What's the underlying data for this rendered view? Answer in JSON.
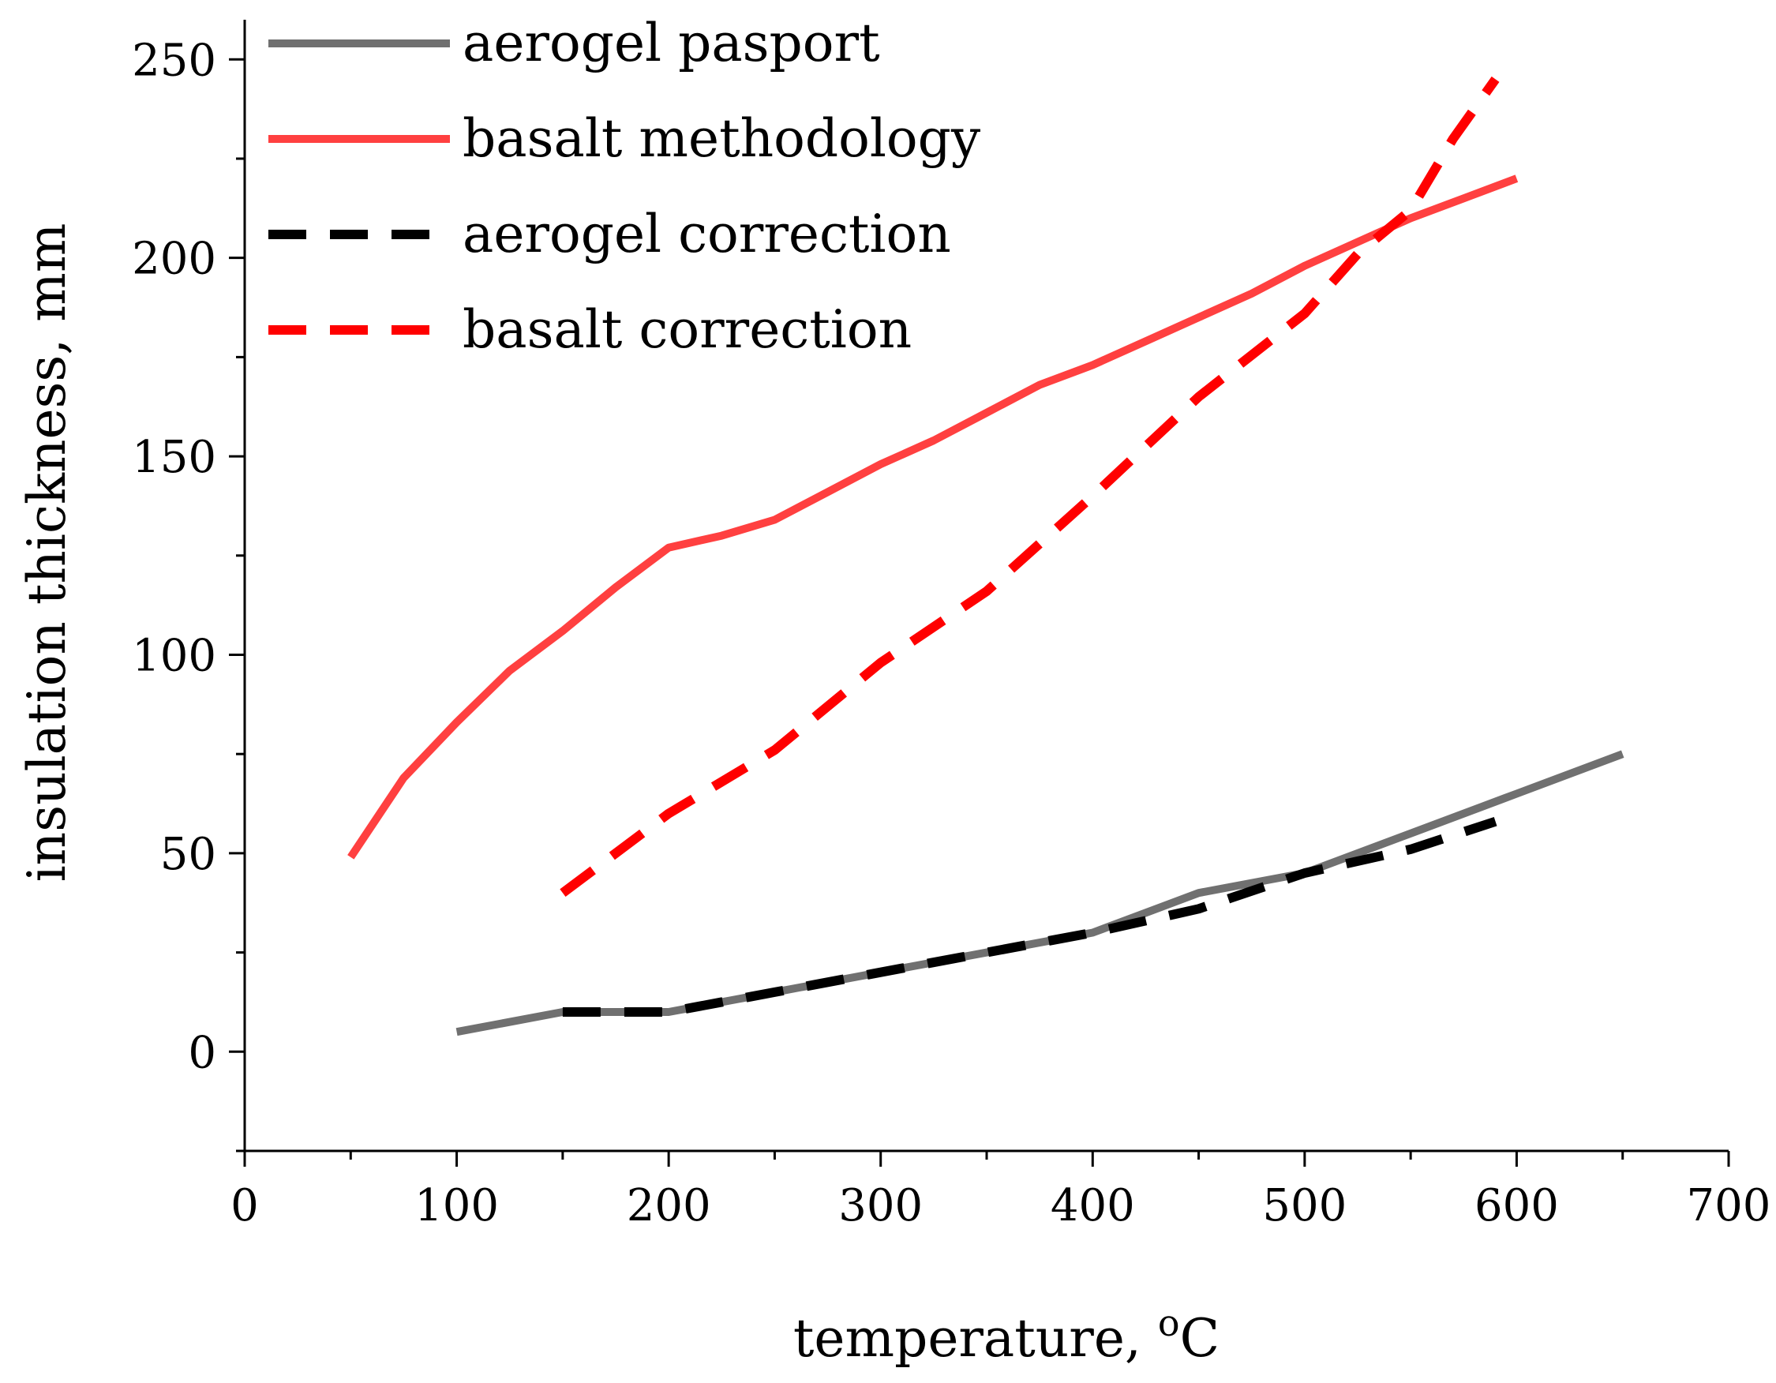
{
  "chart_data": {
    "type": "line",
    "title": "",
    "xlabel": "temperature, ",
    "xlabel_unit_sup": "o",
    "xlabel_unit": "C",
    "ylabel": "insulation thickness, mm",
    "xlim": [
      0,
      700
    ],
    "ylim": [
      -25,
      260
    ],
    "x_ticks": [
      0,
      100,
      200,
      300,
      400,
      500,
      600,
      700
    ],
    "x_tick_labels": [
      "0",
      "100",
      "200",
      "300",
      "400",
      "500",
      "600",
      "700"
    ],
    "y_ticks": [
      0,
      50,
      100,
      150,
      200,
      250
    ],
    "y_tick_labels": [
      "0",
      "50",
      "100",
      "150",
      "200",
      "250"
    ],
    "grid": false,
    "legend_position": "top-left",
    "series": [
      {
        "name": "aerogel pasport",
        "color": "#707070",
        "dash": "solid",
        "x": [
          100,
          150,
          200,
          250,
          300,
          350,
          400,
          450,
          500,
          550,
          600,
          650
        ],
        "y": [
          5,
          10,
          10,
          15,
          20,
          25,
          30,
          40,
          45,
          55,
          65,
          75
        ]
      },
      {
        "name": "basalt methodology",
        "color": "#ff4040",
        "dash": "solid",
        "x": [
          50,
          75,
          100,
          125,
          150,
          175,
          200,
          225,
          250,
          275,
          300,
          325,
          350,
          375,
          400,
          425,
          450,
          475,
          500,
          525,
          550,
          575,
          600
        ],
        "y": [
          49,
          69,
          83,
          96,
          106,
          117,
          127,
          130,
          134,
          141,
          148,
          154,
          161,
          168,
          173,
          179,
          185,
          191,
          198,
          204,
          210,
          215,
          220
        ]
      },
      {
        "name": "aerogel correction",
        "color": "#000000",
        "dash": "dashed",
        "x": [
          150,
          200,
          250,
          300,
          350,
          400,
          450,
          500,
          550,
          590
        ],
        "y": [
          10,
          10,
          15,
          20,
          25,
          30,
          36,
          45,
          51,
          58
        ]
      },
      {
        "name": "basalt correction",
        "color": "#ff0000",
        "dash": "dashed",
        "x": [
          150,
          200,
          250,
          300,
          350,
          400,
          450,
          500,
          525,
          550,
          570,
          590
        ],
        "y": [
          40,
          60,
          76,
          98,
          116,
          140,
          165,
          186,
          201,
          212,
          230,
          245
        ]
      }
    ]
  }
}
